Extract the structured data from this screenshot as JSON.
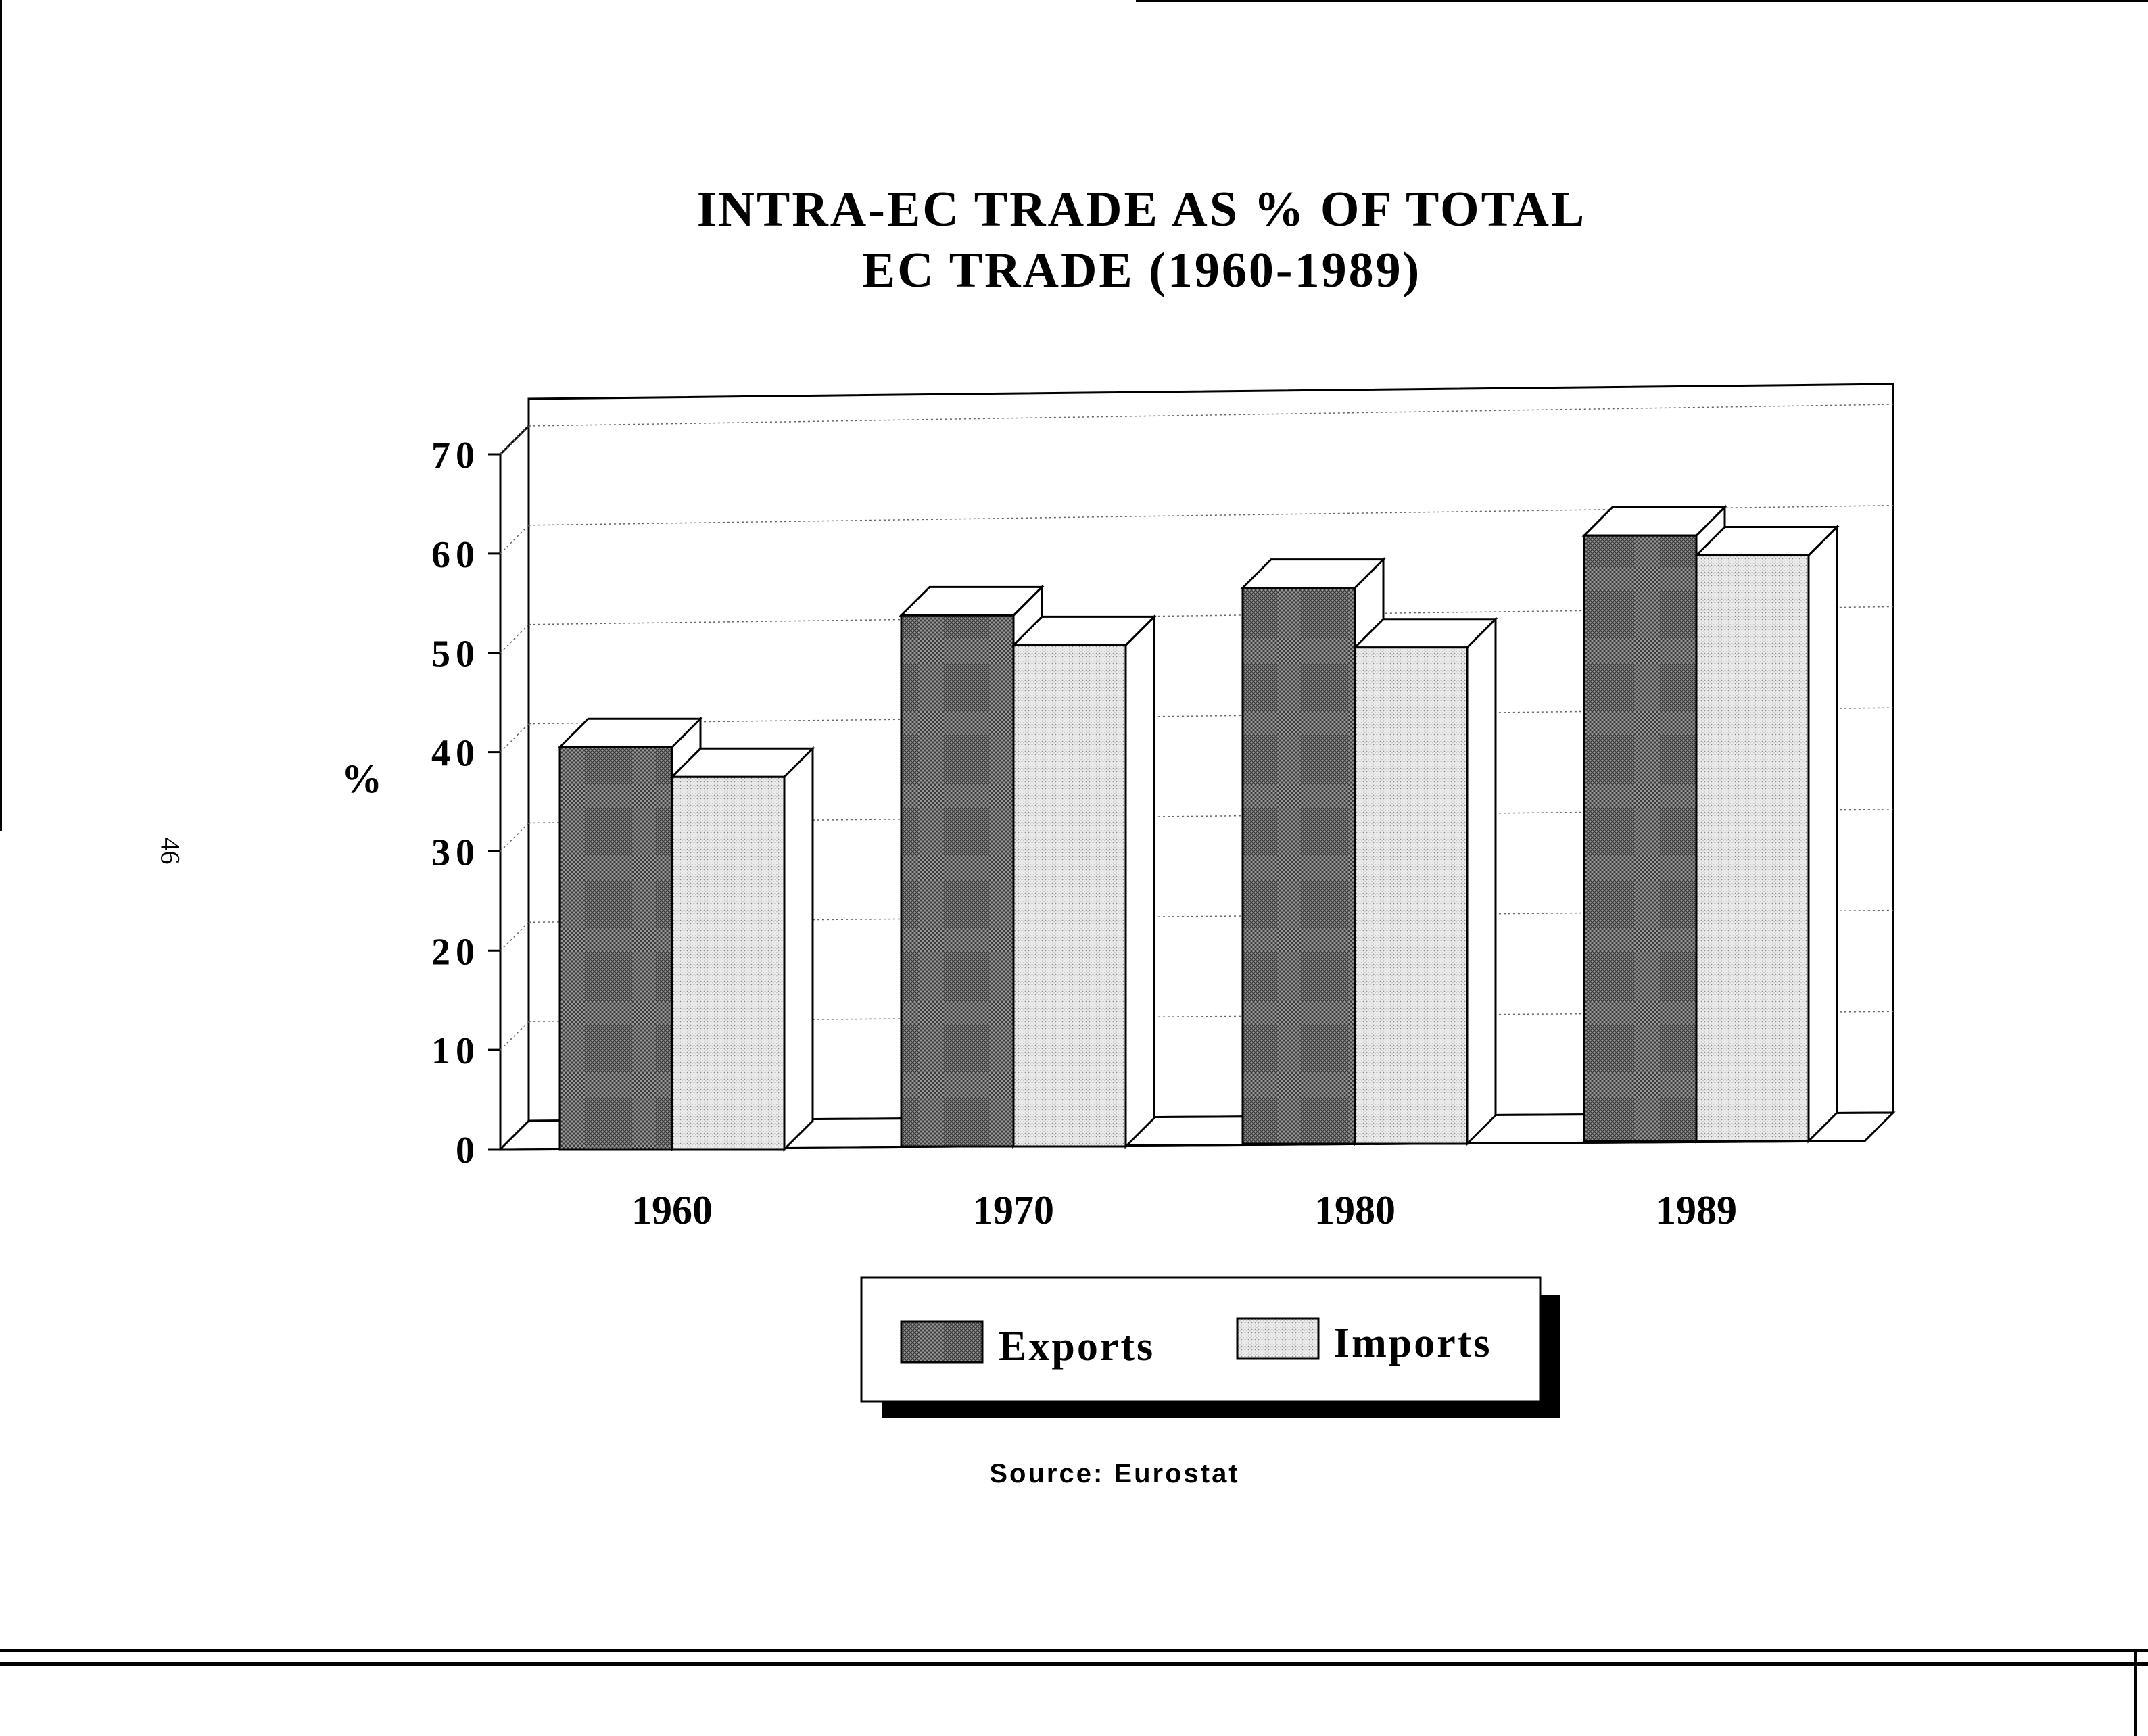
{
  "page_number": "46",
  "source": "Source: Eurostat",
  "chart_data": {
    "type": "bar",
    "title": "INTRA-EC TRADE AS % OF TOTAL",
    "title_line2": "EC TRADE (1960-1989)",
    "xlabel": "",
    "ylabel": "%",
    "categories": [
      "1960",
      "1970",
      "1980",
      "1989"
    ],
    "series": [
      {
        "name": "Exports",
        "values": [
          40.5,
          53.5,
          56,
          61
        ],
        "pattern": "dark-crosshatch",
        "color": "#7d7d7d"
      },
      {
        "name": "Imports",
        "values": [
          37.5,
          50.5,
          50,
          59
        ],
        "pattern": "light-stipple",
        "color": "#d9d9d9"
      }
    ],
    "ylim": [
      0,
      70
    ],
    "yticks": [
      "0",
      "10",
      "20",
      "30",
      "40",
      "50",
      "60",
      "70"
    ],
    "grid": true,
    "style": "3d",
    "legend_position": "bottom-center"
  }
}
